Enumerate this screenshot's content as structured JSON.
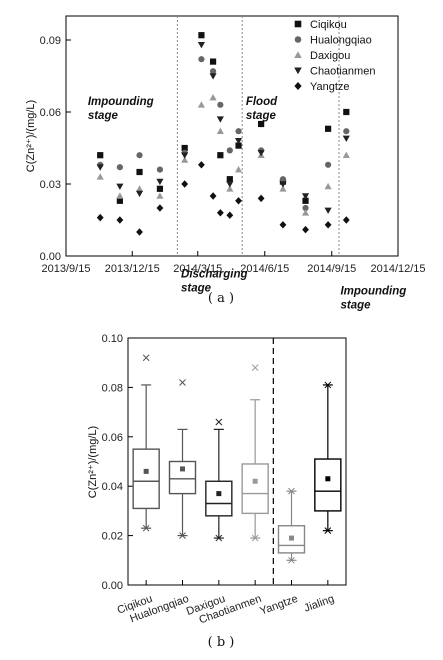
{
  "chart_data": [
    {
      "type": "scatter",
      "panel_label": "( a )",
      "ylabel": "C(Zn²⁺)/(mg/L)",
      "xlabel": "",
      "xlim": [
        "2013/9/15",
        "2014/12/15"
      ],
      "ylim": [
        0,
        0.1
      ],
      "x_ticks": [
        "2013/9/15",
        "2013/12/15",
        "2014/3/15",
        "2014/6/15",
        "2014/9/15",
        "2014/12/15"
      ],
      "y_ticks": [
        "0.00",
        "0.03",
        "0.06",
        "0.09"
      ],
      "legend_position": "top-right",
      "grid": false,
      "stage_dividers": [
        "2014/2/15",
        "2014/5/15",
        "2014/9/25"
      ],
      "stage_labels": [
        {
          "text": "Impounding stage",
          "anchor_date": "2013/10/15",
          "anchor_value": 0.063
        },
        {
          "text": "Discharging stage",
          "anchor_date": "2014/2/20",
          "anchor_value": -0.009
        },
        {
          "text": "Flood stage",
          "anchor_date": "2014/5/20",
          "anchor_value": 0.063
        },
        {
          "text": "Impounding stage",
          "anchor_date": "2014/9/27",
          "anchor_value": -0.016
        }
      ],
      "series": [
        {
          "name": "Ciqikou",
          "marker": "square",
          "color": "#111111",
          "points": [
            [
              "2013/11/1",
              0.042
            ],
            [
              "2013/11/28",
              0.023
            ],
            [
              "2013/12/25",
              0.035
            ],
            [
              "2014/1/22",
              0.028
            ],
            [
              "2014/2/25",
              0.045
            ],
            [
              "2014/3/20",
              0.092
            ],
            [
              "2014/4/5",
              0.081
            ],
            [
              "2014/4/15",
              0.042
            ],
            [
              "2014/4/28",
              0.032
            ],
            [
              "2014/5/10",
              0.046
            ],
            [
              "2014/6/10",
              0.055
            ],
            [
              "2014/7/10",
              0.031
            ],
            [
              "2014/8/10",
              0.023
            ],
            [
              "2014/9/10",
              0.053
            ],
            [
              "2014/10/5",
              0.06
            ]
          ]
        },
        {
          "name": "Hualongqiao",
          "marker": "circle",
          "color": "#666666",
          "points": [
            [
              "2013/11/1",
              0.038
            ],
            [
              "2013/11/28",
              0.037
            ],
            [
              "2013/12/25",
              0.042
            ],
            [
              "2014/1/22",
              0.036
            ],
            [
              "2014/2/25",
              0.043
            ],
            [
              "2014/3/20",
              0.082
            ],
            [
              "2014/4/5",
              0.077
            ],
            [
              "2014/4/15",
              0.063
            ],
            [
              "2014/4/28",
              0.044
            ],
            [
              "2014/5/10",
              0.052
            ],
            [
              "2014/6/10",
              0.044
            ],
            [
              "2014/7/10",
              0.032
            ],
            [
              "2014/8/10",
              0.02
            ],
            [
              "2014/9/10",
              0.038
            ],
            [
              "2014/10/5",
              0.052
            ]
          ]
        },
        {
          "name": "Daxigou",
          "marker": "triangle-up",
          "color": "#999999",
          "points": [
            [
              "2013/11/1",
              0.033
            ],
            [
              "2013/11/28",
              0.025
            ],
            [
              "2013/12/25",
              0.028
            ],
            [
              "2014/1/22",
              0.025
            ],
            [
              "2014/2/25",
              0.04
            ],
            [
              "2014/3/20",
              0.063
            ],
            [
              "2014/4/5",
              0.066
            ],
            [
              "2014/4/15",
              0.052
            ],
            [
              "2014/4/28",
              0.028
            ],
            [
              "2014/5/10",
              0.036
            ],
            [
              "2014/6/10",
              0.042
            ],
            [
              "2014/7/10",
              0.028
            ],
            [
              "2014/8/10",
              0.018
            ],
            [
              "2014/9/10",
              0.029
            ],
            [
              "2014/10/5",
              0.042
            ]
          ]
        },
        {
          "name": "Chaotianmen",
          "marker": "triangle-down",
          "color": "#222222",
          "points": [
            [
              "2013/11/1",
              0.037
            ],
            [
              "2013/11/28",
              0.029
            ],
            [
              "2013/12/25",
              0.026
            ],
            [
              "2014/1/22",
              0.031
            ],
            [
              "2014/2/25",
              0.042
            ],
            [
              "2014/3/20",
              0.088
            ],
            [
              "2014/4/5",
              0.075
            ],
            [
              "2014/4/15",
              0.057
            ],
            [
              "2014/4/28",
              0.03
            ],
            [
              "2014/5/10",
              0.048
            ],
            [
              "2014/6/10",
              0.043
            ],
            [
              "2014/7/10",
              0.03
            ],
            [
              "2014/8/10",
              0.025
            ],
            [
              "2014/9/10",
              0.019
            ],
            [
              "2014/10/5",
              0.049
            ]
          ]
        },
        {
          "name": "Yangtze",
          "marker": "diamond",
          "color": "#111111",
          "points": [
            [
              "2013/11/1",
              0.016
            ],
            [
              "2013/11/28",
              0.015
            ],
            [
              "2013/12/25",
              0.01
            ],
            [
              "2014/1/22",
              0.02
            ],
            [
              "2014/2/25",
              0.03
            ],
            [
              "2014/3/20",
              0.038
            ],
            [
              "2014/4/5",
              0.025
            ],
            [
              "2014/4/15",
              0.018
            ],
            [
              "2014/4/28",
              0.017
            ],
            [
              "2014/5/10",
              0.023
            ],
            [
              "2014/6/10",
              0.024
            ],
            [
              "2014/7/10",
              0.013
            ],
            [
              "2014/8/10",
              0.011
            ],
            [
              "2014/9/10",
              0.013
            ],
            [
              "2014/10/5",
              0.015
            ]
          ]
        }
      ]
    },
    {
      "type": "box",
      "panel_label": "( b )",
      "ylabel": "C(Zn²⁺)/(mg/L)",
      "xlabel": "",
      "ylim": [
        0,
        0.1
      ],
      "y_ticks": [
        "0.00",
        "0.02",
        "0.04",
        "0.06",
        "0.08",
        "0.10"
      ],
      "categories": [
        "Ciqikou",
        "Hualongqiao",
        "Daxigou",
        "Chaotianmen",
        "Yangtze",
        "Jialing"
      ],
      "divider_after_index": 3,
      "grid": false,
      "boxes": [
        {
          "name": "Ciqikou",
          "color": "#555555",
          "min": 0.023,
          "q1": 0.031,
          "median": 0.042,
          "q3": 0.055,
          "max": 0.081,
          "mean": 0.046,
          "outliers": [
            0.092,
            0.023
          ]
        },
        {
          "name": "Hualongqiao",
          "color": "#555555",
          "min": 0.02,
          "q1": 0.037,
          "median": 0.043,
          "q3": 0.05,
          "max": 0.063,
          "mean": 0.047,
          "outliers": [
            0.082,
            0.02
          ]
        },
        {
          "name": "Daxigou",
          "color": "#222222",
          "min": 0.019,
          "q1": 0.028,
          "median": 0.033,
          "q3": 0.042,
          "max": 0.063,
          "mean": 0.037,
          "outliers": [
            0.066,
            0.019
          ]
        },
        {
          "name": "Chaotianmen",
          "color": "#999999",
          "min": 0.019,
          "q1": 0.029,
          "median": 0.037,
          "q3": 0.049,
          "max": 0.075,
          "mean": 0.042,
          "outliers": [
            0.088,
            0.019
          ]
        },
        {
          "name": "Yangtze",
          "color": "#888888",
          "min": 0.01,
          "q1": 0.013,
          "median": 0.016,
          "q3": 0.024,
          "max": 0.038,
          "mean": 0.019,
          "outliers": [
            0.038,
            0.01
          ]
        },
        {
          "name": "Jialing",
          "color": "#000000",
          "min": 0.022,
          "q1": 0.03,
          "median": 0.038,
          "q3": 0.051,
          "max": 0.081,
          "mean": 0.043,
          "outliers": [
            0.081,
            0.022
          ]
        }
      ]
    }
  ]
}
